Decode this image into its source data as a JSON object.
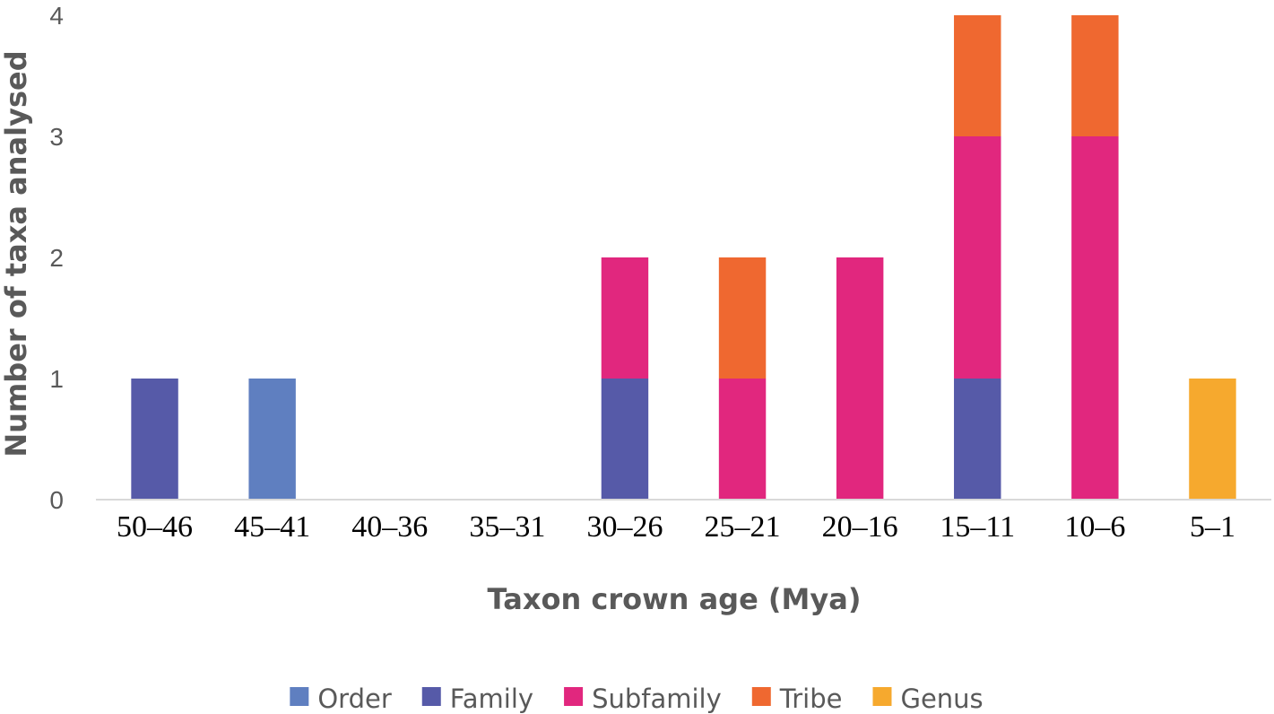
{
  "chart_data": {
    "type": "bar",
    "stacked": true,
    "categories": [
      "50–46",
      "45–41",
      "40–36",
      "35–31",
      "30–26",
      "25–21",
      "20–16",
      "15–11",
      "10–6",
      "5–1"
    ],
    "series": [
      {
        "name": "Order",
        "color": "#5F7FC0",
        "values": [
          0,
          1,
          0,
          0,
          0,
          0,
          0,
          0,
          0,
          0
        ]
      },
      {
        "name": "Family",
        "color": "#565AA8",
        "values": [
          1,
          0,
          0,
          0,
          1,
          0,
          0,
          1,
          0,
          0
        ]
      },
      {
        "name": "Subfamily",
        "color": "#E1277E",
        "values": [
          0,
          0,
          0,
          0,
          1,
          1,
          2,
          2,
          3,
          0
        ]
      },
      {
        "name": "Tribe",
        "color": "#EF6830",
        "values": [
          0,
          0,
          0,
          0,
          0,
          1,
          0,
          1,
          1,
          0
        ]
      },
      {
        "name": "Genus",
        "color": "#F6A92E",
        "values": [
          0,
          0,
          0,
          0,
          0,
          0,
          0,
          0,
          0,
          1
        ]
      }
    ],
    "xlabel": "Taxon crown age (Mya)",
    "ylabel": "Number of taxa analysed",
    "ylim": [
      0,
      4
    ],
    "yticks": [
      "0",
      "1",
      "2",
      "3",
      "4"
    ],
    "legend_position": "bottom",
    "grid": false
  }
}
